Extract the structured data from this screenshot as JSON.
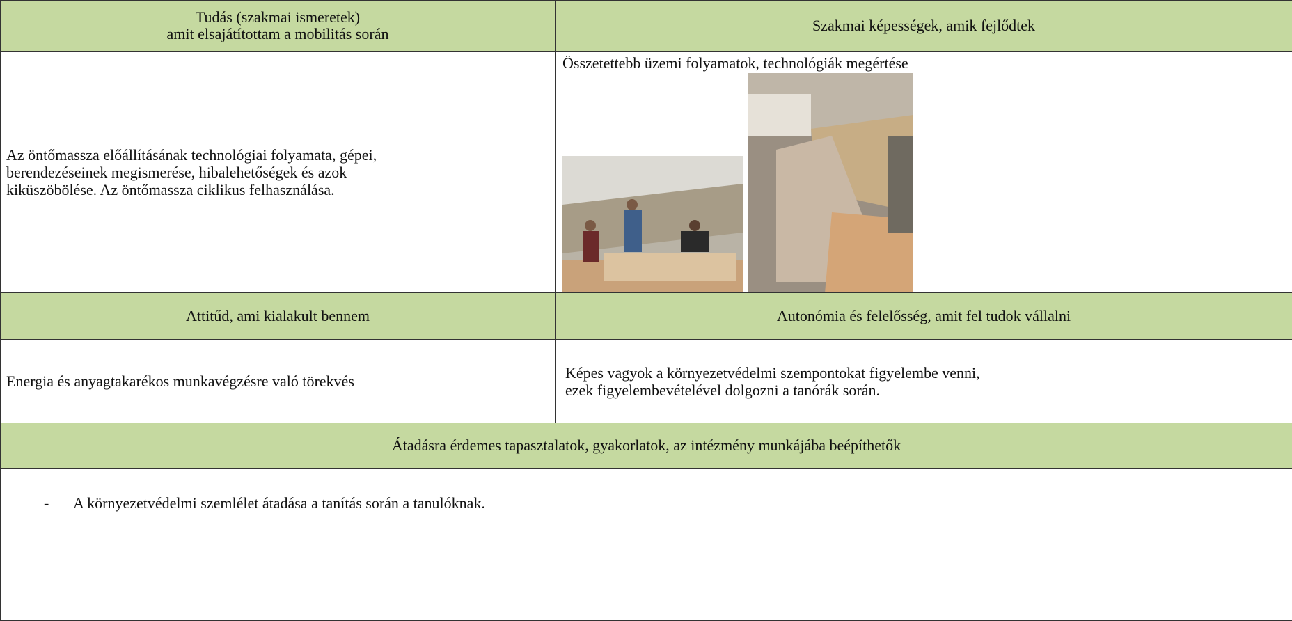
{
  "cells": {
    "knowledge_header": [
      "Tudás (szakmai ismeretek)",
      "amit elsajátítottam a mobilitás során"
    ],
    "skills_header": "Szakmai képességek, amik fejlődtek",
    "knowledge_text": [
      "Az öntőmassza előállításának technológiai folyamata, gépei,",
      "berendezéseinek megismerése, hibalehetőségek és azok",
      "kiküszöbölése. Az öntőmassza ciklikus felhasználása."
    ],
    "skills_text": "Összetettebb üzemi folyamatok, technológiák megértése",
    "attitude_header": "Attitűd, ami kialakult bennem",
    "autonomy_header": "Autonómia és felelősség, amit fel tudok vállalni",
    "attitude_text": "Energia és anyagtakarékos munkavégzésre való törekvés",
    "autonomy_text": [
      "Képes vagyok a környezetvédelmi szempontokat figyelembe venni,",
      "ezek figyelembevételével dolgozni a tanórák során."
    ],
    "transfer_header": "Átadásra érdemes tapasztalatok, gyakorlatok, az intézmény munkájába beépíthetők",
    "transfer_items": [
      {
        "bullet": "-",
        "text": "A környezetvédelmi szemlélet átadása a tanítás során a tanulóknak."
      }
    ]
  }
}
